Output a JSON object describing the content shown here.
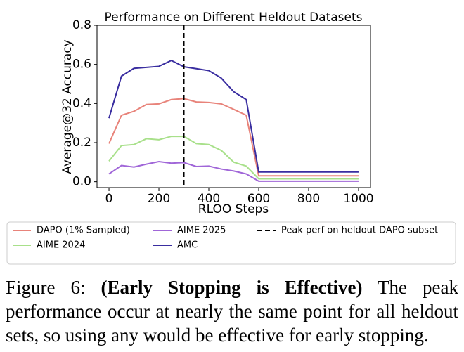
{
  "chart_data": {
    "type": "line",
    "title": "Performance on Different Heldout Datasets",
    "xlabel": "RLOO Steps",
    "ylabel": "Average@32 Accuracy",
    "x": [
      0,
      50,
      100,
      150,
      200,
      250,
      300,
      350,
      400,
      450,
      500,
      550,
      600,
      650,
      700,
      750,
      800,
      850,
      900,
      950,
      1000
    ],
    "series": [
      {
        "name": "DAPO (1% Sampled)",
        "color": "#e8837a",
        "values": [
          0.195,
          0.34,
          0.36,
          0.395,
          0.398,
          0.42,
          0.425,
          0.408,
          0.405,
          0.398,
          0.37,
          0.34,
          0.03,
          0.03,
          0.03,
          0.03,
          0.03,
          0.03,
          0.03,
          0.03,
          0.03
        ]
      },
      {
        "name": "AIME 2024",
        "color": "#a8e08a",
        "values": [
          0.105,
          0.185,
          0.19,
          0.22,
          0.215,
          0.232,
          0.232,
          0.195,
          0.19,
          0.16,
          0.1,
          0.08,
          0.015,
          0.015,
          0.015,
          0.015,
          0.015,
          0.015,
          0.015,
          0.015,
          0.015
        ]
      },
      {
        "name": "AIME 2025",
        "color": "#a066d8",
        "values": [
          0.04,
          0.083,
          0.075,
          0.09,
          0.103,
          0.095,
          0.098,
          0.078,
          0.08,
          0.065,
          0.055,
          0.04,
          0.003,
          0.003,
          0.003,
          0.003,
          0.003,
          0.003,
          0.003,
          0.003,
          0.003
        ]
      },
      {
        "name": "AMC",
        "color": "#3a2ea0",
        "values": [
          0.325,
          0.54,
          0.58,
          0.585,
          0.59,
          0.62,
          0.588,
          0.578,
          0.568,
          0.53,
          0.46,
          0.42,
          0.05,
          0.05,
          0.05,
          0.05,
          0.05,
          0.05,
          0.05,
          0.05,
          0.05
        ]
      }
    ],
    "vline": {
      "x": 300,
      "label": "Peak perf on heldout DAPO subset",
      "color": "#000000"
    },
    "xlim": [
      -48,
      1048
    ],
    "ylim": [
      -0.03,
      0.8
    ],
    "xticks": [
      0,
      200,
      400,
      600,
      800,
      1000
    ],
    "yticks": [
      {
        "value": 0,
        "label": "0.0"
      },
      0.2,
      0.4,
      0.6,
      0.8
    ],
    "grid": false,
    "legend": "below"
  },
  "caption": {
    "label": "Figure 6:",
    "title": "(Early Stopping is Effective)",
    "text": "The peak performance occur at nearly the same point for all heldout sets, so using any would be effective for early stopping."
  }
}
